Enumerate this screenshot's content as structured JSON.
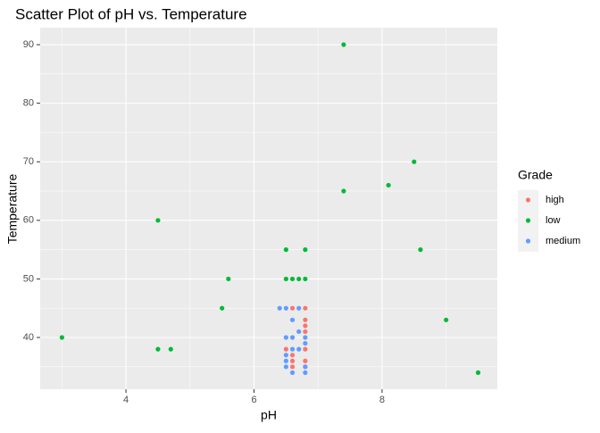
{
  "chart_data": {
    "type": "scatter",
    "title": "Scatter Plot of pH vs. Temperature",
    "x_label": "pH",
    "y_label": "Temperature",
    "legend_title": "Grade",
    "legend_position": "right",
    "grid": true,
    "xlim": [
      2.66,
      9.8
    ],
    "ylim": [
      31.16,
      92.9
    ],
    "xticks": [
      4,
      6,
      8
    ],
    "yticks": [
      40,
      50,
      60,
      70,
      80,
      90
    ],
    "series": [
      {
        "name": "high",
        "color": "#F8766D",
        "x": [
          6.6,
          6.8,
          6.8,
          6.8,
          6.8,
          6.5,
          6.6,
          6.6,
          6.6,
          6.8,
          6.8,
          6.8
        ],
        "y": [
          45,
          45,
          43,
          42,
          41,
          38,
          37,
          36,
          35,
          38,
          36,
          35
        ]
      },
      {
        "name": "low",
        "color": "#00BA38",
        "x": [
          3.0,
          4.5,
          4.7,
          4.5,
          5.5,
          5.6,
          6.5,
          6.8,
          6.5,
          6.6,
          6.7,
          6.8,
          7.4,
          7.4,
          8.1,
          8.5,
          8.6,
          9.0,
          9.5
        ],
        "y": [
          40,
          38,
          38,
          60,
          45,
          50,
          55,
          55,
          50,
          50,
          50,
          50,
          90,
          65,
          66,
          70,
          55,
          43,
          34
        ]
      },
      {
        "name": "medium",
        "color": "#619CFF",
        "x": [
          6.4,
          6.5,
          6.7,
          6.6,
          6.5,
          6.6,
          6.7,
          6.8,
          6.8,
          6.6,
          6.7,
          6.5,
          6.5,
          6.5,
          6.6,
          6.8,
          6.8
        ],
        "y": [
          45,
          45,
          45,
          43,
          40,
          40,
          41,
          40,
          39,
          38,
          38,
          37,
          36,
          35,
          34,
          35,
          34
        ]
      }
    ]
  }
}
